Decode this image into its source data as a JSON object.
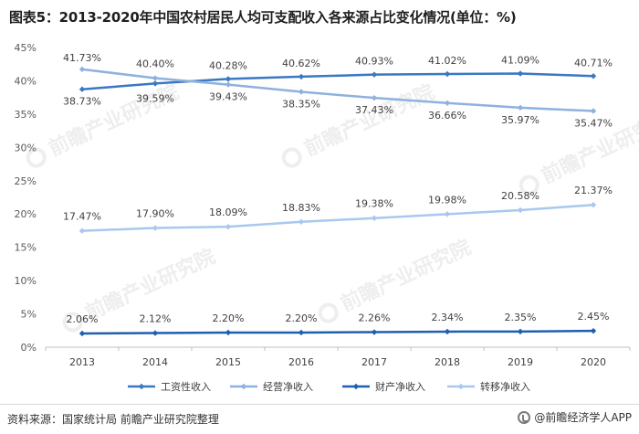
{
  "title": "图表5：2013-2020年中国农村居民人均可支配收入各来源占比变化情况(单位：%)",
  "source": "资料来源：国家统计局 前瞻产业研究院整理",
  "brand": "@前瞻经济学人APP",
  "watermark": "前瞻产业研究院",
  "chart_data": {
    "type": "line",
    "x": [
      "2013",
      "2014",
      "2015",
      "2016",
      "2017",
      "2018",
      "2019",
      "2020"
    ],
    "ylim": [
      0,
      45
    ],
    "yticks": [
      "0%",
      "5%",
      "10%",
      "15%",
      "20%",
      "25%",
      "30%",
      "35%",
      "40%",
      "45%"
    ],
    "grid": false,
    "legend_position": "bottom",
    "series": [
      {
        "name": "工资性收入",
        "color": "#3a78c3",
        "values": [
          38.73,
          39.59,
          40.28,
          40.62,
          40.93,
          41.02,
          41.09,
          40.71
        ],
        "labels": [
          "38.73%",
          "39.59%",
          "40.28%",
          "40.62%",
          "40.93%",
          "41.02%",
          "41.09%",
          "40.71%"
        ]
      },
      {
        "name": "经营净收入",
        "color": "#8fb1dd",
        "values": [
          41.73,
          40.4,
          39.43,
          38.35,
          37.43,
          36.66,
          35.97,
          35.47
        ],
        "labels": [
          "41.73%",
          "40.40%",
          "39.43%",
          "38.35%",
          "37.43%",
          "36.66%",
          "35.97%",
          "35.47%"
        ]
      },
      {
        "name": "财产净收入",
        "color": "#1f5fb0",
        "values": [
          2.06,
          2.12,
          2.2,
          2.2,
          2.26,
          2.34,
          2.35,
          2.45
        ],
        "labels": [
          "2.06%",
          "2.12%",
          "2.20%",
          "2.20%",
          "2.26%",
          "2.34%",
          "2.35%",
          "2.45%"
        ]
      },
      {
        "name": "转移净收入",
        "color": "#a8c8ee",
        "values": [
          17.47,
          17.9,
          18.09,
          18.83,
          19.38,
          19.98,
          20.58,
          21.37
        ],
        "labels": [
          "17.47%",
          "17.90%",
          "18.09%",
          "18.83%",
          "19.38%",
          "19.98%",
          "20.58%",
          "21.37%"
        ]
      }
    ]
  }
}
